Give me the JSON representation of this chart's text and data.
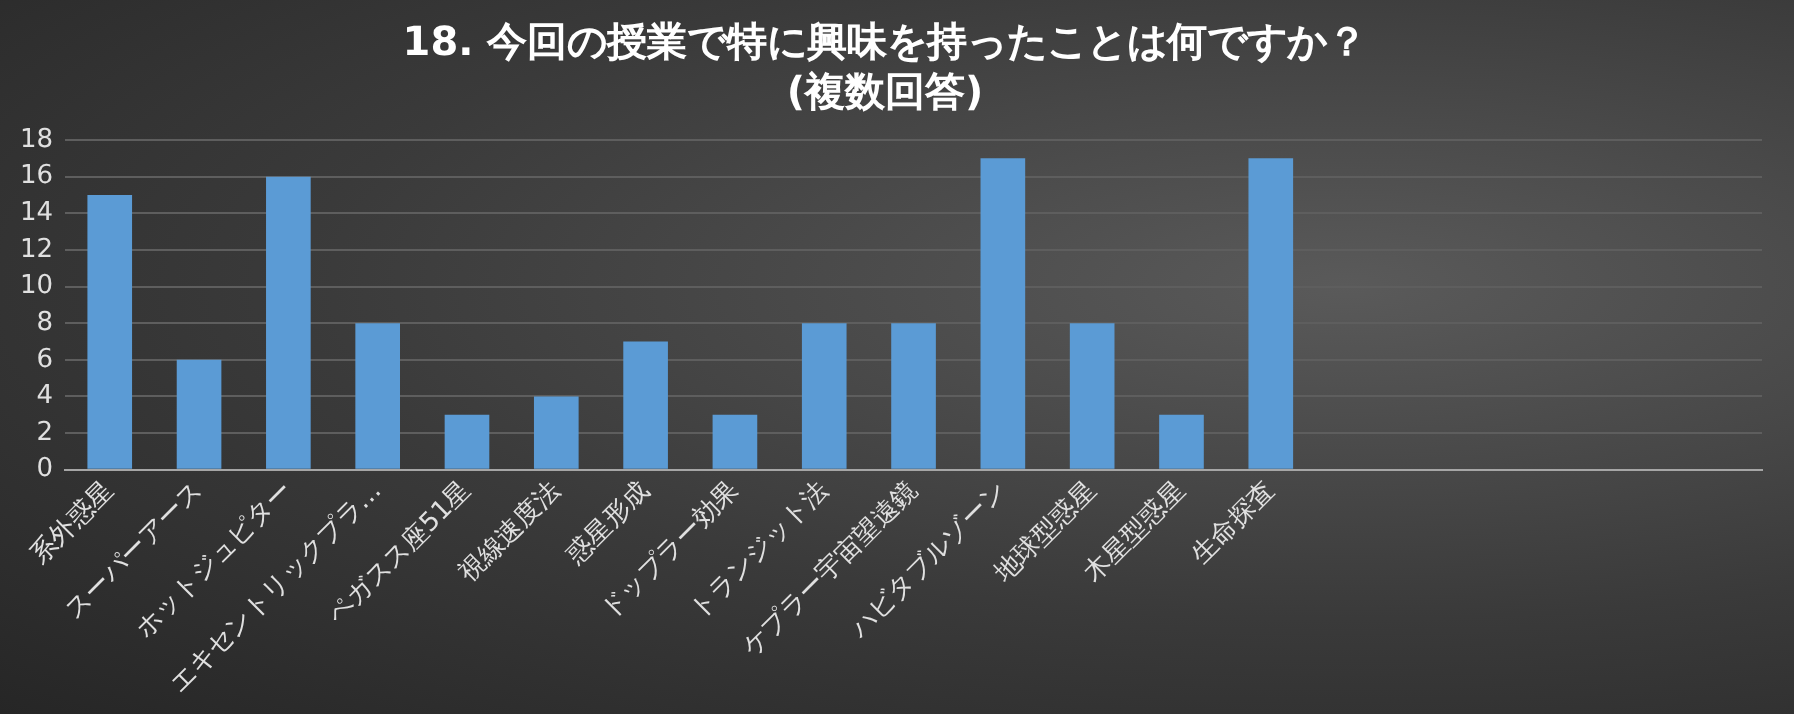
{
  "chart_data": {
    "type": "bar",
    "title": "18. 今回の授業で特に興味を持ったことは何ですか？",
    "subtitle": "(複数回答)",
    "categories": [
      "系外惑星",
      "スーパーアース",
      "ホットジュピター",
      "エキセントリックプラ…",
      "ペガスス座51星",
      "視線速度法",
      "惑星形成",
      "ドップラー効果",
      "トランジット法",
      "ケプラー宇宙望遠鏡",
      "ハビタブルゾーン",
      "地球型惑星",
      "木星型惑星",
      "生命探査",
      null,
      null,
      null,
      null,
      null
    ],
    "values": [
      15,
      6,
      16,
      8,
      3,
      4,
      7,
      3,
      8,
      8,
      17,
      8,
      3,
      17,
      null,
      null,
      null,
      null,
      null
    ],
    "color": "#5b9bd5",
    "ylim": [
      0,
      18
    ],
    "yticks": [
      0,
      2,
      4,
      6,
      8,
      10,
      12,
      14,
      16,
      18
    ],
    "grid": "y",
    "legend": false
  }
}
